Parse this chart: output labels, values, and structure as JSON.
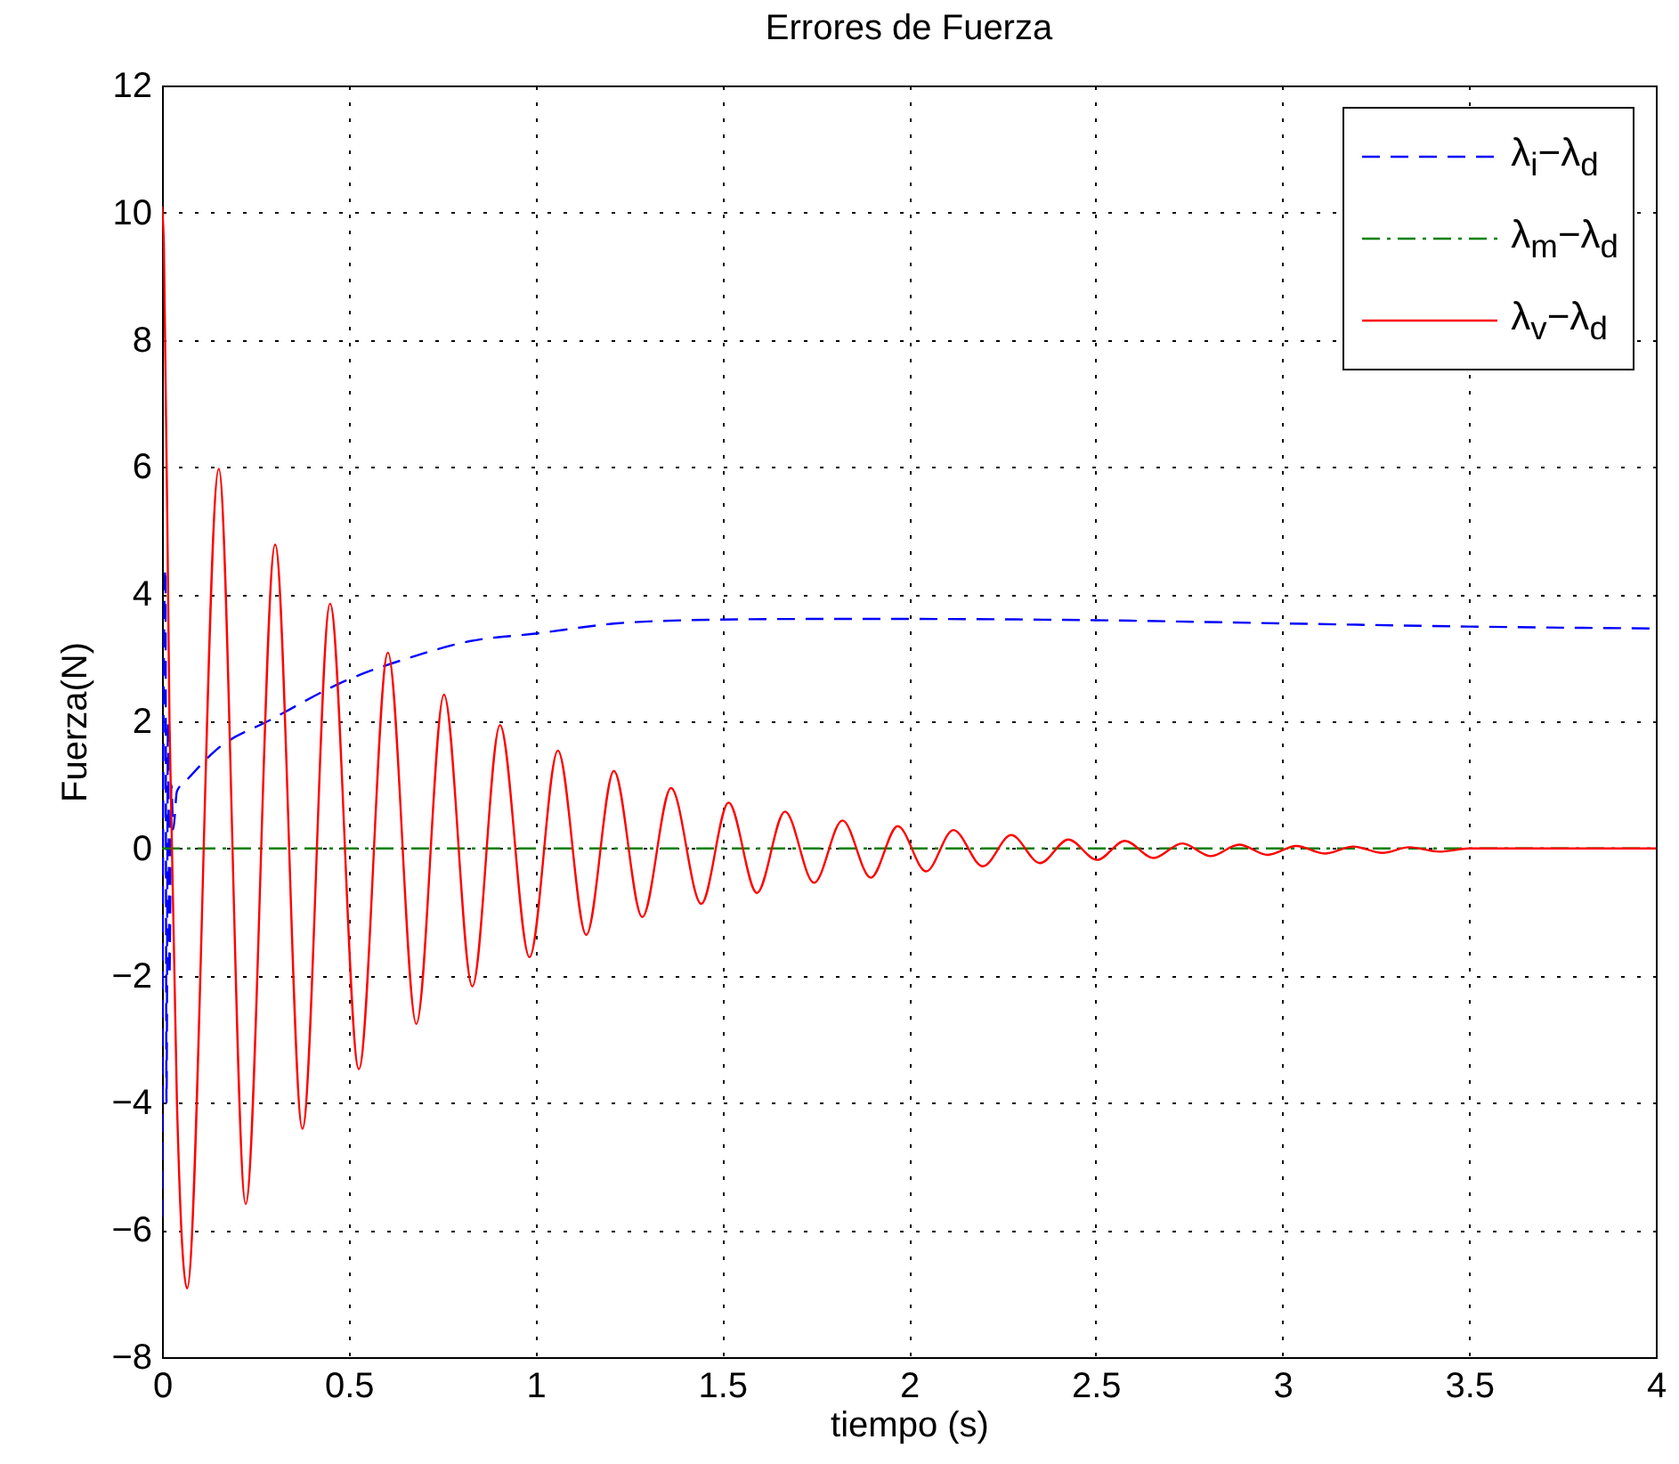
{
  "chart_data": {
    "type": "line",
    "title": "Errores de Fuerza",
    "xlabel": "tiempo (s)",
    "ylabel": "Fuerza(N)",
    "xlim": [
      0,
      4
    ],
    "ylim": [
      -8,
      12
    ],
    "xticks": [
      0,
      0.5,
      1,
      1.5,
      2,
      2.5,
      3,
      3.5,
      4
    ],
    "yticks": [
      -8,
      -6,
      -4,
      -2,
      0,
      2,
      4,
      6,
      8,
      10,
      12
    ],
    "grid": true,
    "legend": "top right",
    "series": [
      {
        "name": "λ$_{i}$−λ$_{d}$",
        "color": "#0000ff",
        "line_style": "dashed",
        "x": [
          0,
          0.005,
          0.009,
          0.012,
          0.016,
          0.02,
          0.025,
          0.03,
          0.04,
          0.07,
          0.143,
          0.293,
          0.5,
          0.663,
          0.824,
          1.0,
          1.217,
          1.4,
          1.5,
          1.75,
          2.0,
          2.5,
          3.0,
          3.5,
          4.0
        ],
        "values": [
          -5.8,
          3,
          4.4,
          -4,
          2,
          -2,
          1,
          0.3,
          0.9,
          1.1,
          1.54,
          2.03,
          2.66,
          3.0,
          3.26,
          3.38,
          3.54,
          3.59,
          3.6,
          3.61,
          3.61,
          3.59,
          3.54,
          3.49,
          3.46
        ]
      },
      {
        "name": "λ$_{m}$−λ$_{d}$",
        "color": "#008000",
        "line_style": "dashdot",
        "x": [
          0,
          1,
          2,
          3,
          4
        ],
        "values": [
          0,
          0,
          0,
          0,
          0
        ]
      },
      {
        "name": "λ$_{v}$−λ$_{d}$",
        "color": "#ff0000",
        "line_style": "solid",
        "x": [
          0,
          0.005,
          0.02,
          0.04,
          0.067,
          0.152,
          0.224,
          0.303,
          0.376,
          0.45,
          0.527,
          0.605,
          0.681,
          0.755,
          0.831,
          0.905,
          0.984,
          1.06,
          1.136,
          1.21,
          1.286,
          1.363,
          1.444,
          1.517,
          1.593,
          1.668,
          1.746,
          1.822,
          1.898,
          1.97,
          2.046,
          2.119,
          2.198,
          2.274,
          2.351,
          2.427,
          2.504,
          2.578,
          2.655,
          2.732,
          2.808,
          2.884,
          2.961,
          3.037,
          3.113,
          3.19,
          3.267,
          3.34,
          3.42,
          3.5,
          4.0
        ],
        "values": [
          10.1,
          9.5,
          2,
          -4,
          -6.92,
          5.97,
          -5.59,
          4.78,
          -4.41,
          3.85,
          -3.47,
          3.08,
          -2.76,
          2.42,
          -2.17,
          1.94,
          -1.71,
          1.54,
          -1.36,
          1.22,
          -1.08,
          0.95,
          -0.87,
          0.72,
          -0.7,
          0.58,
          -0.54,
          0.44,
          -0.46,
          0.35,
          -0.36,
          0.29,
          -0.28,
          0.21,
          -0.23,
          0.14,
          -0.18,
          0.12,
          -0.15,
          0.08,
          -0.12,
          0.06,
          -0.1,
          0.04,
          -0.08,
          0.03,
          -0.07,
          0.02,
          -0.05,
          0,
          0
        ]
      }
    ]
  }
}
